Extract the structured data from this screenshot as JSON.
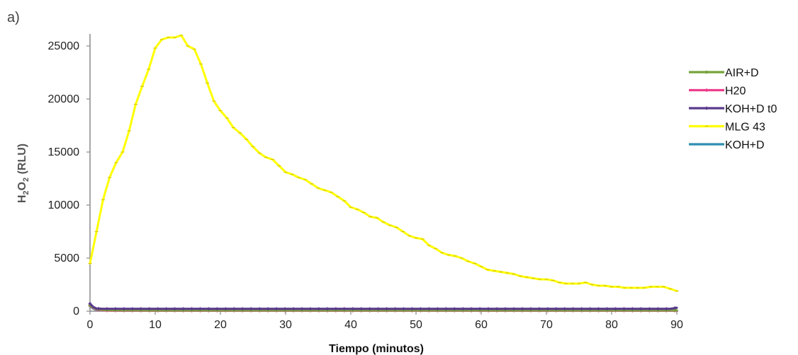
{
  "panel_label": "a)",
  "chart_data": {
    "type": "line",
    "xlabel": "Tiempo (minutos)",
    "ylabel": {
      "main": "H",
      "sub1": "2",
      "mid": "O",
      "sub2": "2",
      "unit": " (RLU)"
    },
    "xlim": [
      0,
      90
    ],
    "ylim": [
      0,
      26000
    ],
    "xticks": [
      0,
      10,
      20,
      30,
      40,
      50,
      60,
      70,
      80,
      90
    ],
    "yticks": [
      0,
      5000,
      10000,
      15000,
      20000,
      25000
    ],
    "legend_position": "right",
    "series": [
      {
        "name": "AIR+D",
        "color": "#77a33a",
        "marker": "circle",
        "x": [
          0,
          0.5,
          1,
          2,
          3,
          5,
          10,
          20,
          30,
          40,
          50,
          60,
          70,
          80,
          90
        ],
        "y": [
          550,
          350,
          200,
          120,
          100,
          90,
          80,
          80,
          80,
          80,
          80,
          80,
          80,
          80,
          80
        ]
      },
      {
        "name": "H20",
        "color": "#ec3f8c",
        "marker": "cross",
        "x": [
          0,
          0.5,
          1,
          2,
          3,
          5,
          10,
          20,
          30,
          40,
          50,
          60,
          70,
          80,
          90
        ],
        "y": [
          500,
          300,
          150,
          80,
          60,
          50,
          50,
          50,
          50,
          50,
          50,
          50,
          50,
          50,
          50
        ]
      },
      {
        "name": "KOH+D t0",
        "color": "#5b3a8c",
        "marker": "diamond",
        "x": [
          0,
          0.5,
          1,
          2,
          3,
          5,
          10,
          20,
          30,
          40,
          50,
          60,
          70,
          80,
          89,
          90
        ],
        "y": [
          700,
          400,
          250,
          220,
          220,
          220,
          220,
          220,
          220,
          220,
          220,
          220,
          220,
          220,
          220,
          320
        ]
      },
      {
        "name": "MLG 43",
        "color": "#ffff00",
        "marker": "dash",
        "x": [
          0,
          1,
          2,
          3,
          4,
          5,
          6,
          7,
          8,
          9,
          10,
          11,
          12,
          13,
          14,
          15,
          16,
          17,
          18,
          19,
          20,
          21,
          22,
          23,
          24,
          25,
          26,
          27,
          28,
          29,
          30,
          31,
          32,
          33,
          34,
          35,
          36,
          37,
          38,
          39,
          40,
          41,
          42,
          43,
          44,
          45,
          46,
          47,
          48,
          49,
          50,
          51,
          52,
          53,
          54,
          55,
          56,
          57,
          58,
          59,
          60,
          61,
          62,
          63,
          64,
          65,
          66,
          67,
          68,
          69,
          70,
          71,
          72,
          73,
          74,
          75,
          76,
          77,
          78,
          79,
          80,
          81,
          82,
          83,
          84,
          85,
          86,
          87,
          88,
          89,
          90
        ],
        "y": [
          4500,
          7500,
          10500,
          12600,
          14000,
          15000,
          17000,
          19500,
          21200,
          22800,
          24800,
          25600,
          25800,
          25800,
          26000,
          25000,
          24700,
          23300,
          21500,
          19800,
          18900,
          18200,
          17300,
          16800,
          16200,
          15500,
          14900,
          14500,
          14300,
          13700,
          13100,
          12900,
          12600,
          12400,
          12000,
          11600,
          11400,
          11200,
          10800,
          10400,
          9800,
          9600,
          9300,
          8900,
          8800,
          8400,
          8100,
          7900,
          7500,
          7100,
          6900,
          6800,
          6200,
          5900,
          5500,
          5300,
          5200,
          5000,
          4700,
          4500,
          4200,
          3900,
          3800,
          3700,
          3600,
          3500,
          3300,
          3200,
          3100,
          3000,
          3000,
          2900,
          2700,
          2600,
          2600,
          2600,
          2700,
          2500,
          2400,
          2400,
          2300,
          2300,
          2200,
          2200,
          2200,
          2200,
          2300,
          2300,
          2300,
          2100,
          1900
        ]
      },
      {
        "name": "KOH+D",
        "color": "#2f8fb0",
        "marker": "none",
        "x": [
          0,
          0.5,
          1,
          2,
          3,
          5,
          10,
          20,
          30,
          40,
          50,
          60,
          70,
          80,
          90
        ],
        "y": [
          450,
          250,
          120,
          80,
          70,
          60,
          60,
          60,
          60,
          60,
          60,
          60,
          60,
          60,
          60
        ]
      }
    ]
  }
}
